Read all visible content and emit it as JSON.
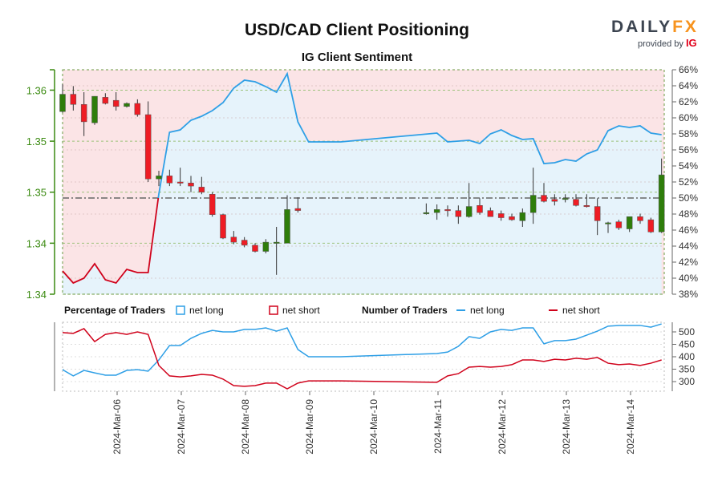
{
  "header": {
    "title": "USD/CAD Client Positioning",
    "subtitle": "IG Client Sentiment",
    "logo": "DAILYFX",
    "logo_provided": "provided by",
    "logo_ig": "IG"
  },
  "legend": {
    "pct_title": "Percentage of Traders",
    "pct_long": "net long",
    "pct_short": "net short",
    "num_title": "Number of Traders",
    "num_long": "net long",
    "num_short": "net short"
  },
  "colors": {
    "long": "#2e9fe6",
    "short": "#d0021b",
    "bull": "#2e7d0a",
    "bear": "#ee1c24",
    "long_fill": "#e6f3fb",
    "short_fill": "#fbe4e6",
    "axis_green": "#3a8a10"
  },
  "chart_data": [
    {
      "type": "candlestick+area",
      "title": "USD/CAD Client Positioning",
      "subtitle": "IG Client Sentiment",
      "x_unit": "4-hour bars from 2024-03-05 04:00",
      "price_ticks": [
        "1.36",
        "1.35",
        "1.35",
        "1.34",
        "1.34"
      ],
      "price_tick_values": [
        1.36,
        1.355,
        1.35,
        1.345,
        1.34
      ],
      "price_range": [
        1.34,
        1.362
      ],
      "pct_ticks": [
        "66%",
        "64%",
        "62%",
        "60%",
        "58%",
        "56%",
        "54%",
        "52%",
        "50%",
        "48%",
        "46%",
        "44%",
        "42%",
        "40%",
        "38%"
      ],
      "pct_range": [
        38,
        66
      ],
      "reference_pct": 50,
      "candles": [
        {
          "i": 0,
          "o": 1.3579,
          "h": 1.3606,
          "l": 1.3578,
          "c": 1.3596
        },
        {
          "i": 1,
          "o": 1.3596,
          "h": 1.3604,
          "l": 1.358,
          "c": 1.3586
        },
        {
          "i": 2,
          "o": 1.3586,
          "h": 1.3598,
          "l": 1.3555,
          "c": 1.3569
        },
        {
          "i": 3,
          "o": 1.3568,
          "h": 1.3594,
          "l": 1.3566,
          "c": 1.3594
        },
        {
          "i": 4,
          "o": 1.3593,
          "h": 1.3597,
          "l": 1.3586,
          "c": 1.3587
        },
        {
          "i": 5,
          "o": 1.359,
          "h": 1.3598,
          "l": 1.358,
          "c": 1.3584
        },
        {
          "i": 6,
          "o": 1.3584,
          "h": 1.3588,
          "l": 1.3583,
          "c": 1.3587
        },
        {
          "i": 7,
          "o": 1.3587,
          "h": 1.3591,
          "l": 1.3574,
          "c": 1.3576
        },
        {
          "i": 8,
          "o": 1.3576,
          "h": 1.3589,
          "l": 1.351,
          "c": 1.3513
        },
        {
          "i": 9,
          "o": 1.3513,
          "h": 1.3521,
          "l": 1.3506,
          "c": 1.3516
        },
        {
          "i": 10,
          "o": 1.3516,
          "h": 1.3522,
          "l": 1.3506,
          "c": 1.3509
        },
        {
          "i": 11,
          "o": 1.351,
          "h": 1.3524,
          "l": 1.3506,
          "c": 1.3509
        },
        {
          "i": 12,
          "o": 1.3509,
          "h": 1.3516,
          "l": 1.35,
          "c": 1.3506
        },
        {
          "i": 13,
          "o": 1.3505,
          "h": 1.3515,
          "l": 1.3498,
          "c": 1.35
        },
        {
          "i": 14,
          "o": 1.3498,
          "h": 1.35,
          "l": 1.3476,
          "c": 1.3478
        },
        {
          "i": 15,
          "o": 1.3478,
          "h": 1.3479,
          "l": 1.3454,
          "c": 1.3455
        },
        {
          "i": 16,
          "o": 1.3456,
          "h": 1.3462,
          "l": 1.3449,
          "c": 1.3451
        },
        {
          "i": 17,
          "o": 1.3453,
          "h": 1.3456,
          "l": 1.3446,
          "c": 1.3448
        },
        {
          "i": 18,
          "o": 1.3448,
          "h": 1.345,
          "l": 1.3441,
          "c": 1.3442
        },
        {
          "i": 19,
          "o": 1.3442,
          "h": 1.3454,
          "l": 1.344,
          "c": 1.3451
        },
        {
          "i": 20,
          "o": 1.345,
          "h": 1.3466,
          "l": 1.3419,
          "c": 1.3451
        },
        {
          "i": 21,
          "o": 1.345,
          "h": 1.3497,
          "l": 1.345,
          "c": 1.3483
        },
        {
          "i": 22,
          "o": 1.3484,
          "h": 1.3495,
          "l": 1.348,
          "c": 1.3482
        },
        {
          "i": 34,
          "o": 1.348,
          "h": 1.3489,
          "l": 1.3478,
          "c": 1.348
        },
        {
          "i": 35,
          "o": 1.348,
          "h": 1.3488,
          "l": 1.3473,
          "c": 1.3483
        },
        {
          "i": 36,
          "o": 1.3483,
          "h": 1.3487,
          "l": 1.3476,
          "c": 1.3482
        },
        {
          "i": 37,
          "o": 1.3482,
          "h": 1.3487,
          "l": 1.3469,
          "c": 1.3476
        },
        {
          "i": 38,
          "o": 1.3476,
          "h": 1.3509,
          "l": 1.3475,
          "c": 1.3486
        },
        {
          "i": 39,
          "o": 1.3487,
          "h": 1.3494,
          "l": 1.3478,
          "c": 1.348
        },
        {
          "i": 40,
          "o": 1.3482,
          "h": 1.3485,
          "l": 1.3476,
          "c": 1.3476
        },
        {
          "i": 41,
          "o": 1.3479,
          "h": 1.3482,
          "l": 1.3472,
          "c": 1.3475
        },
        {
          "i": 42,
          "o": 1.3476,
          "h": 1.3479,
          "l": 1.3472,
          "c": 1.3473
        },
        {
          "i": 43,
          "o": 1.3472,
          "h": 1.3484,
          "l": 1.3466,
          "c": 1.348
        },
        {
          "i": 44,
          "o": 1.348,
          "h": 1.3524,
          "l": 1.3469,
          "c": 1.3497
        },
        {
          "i": 45,
          "o": 1.3497,
          "h": 1.3509,
          "l": 1.349,
          "c": 1.3491
        },
        {
          "i": 46,
          "o": 1.3493,
          "h": 1.3498,
          "l": 1.3487,
          "c": 1.3491
        },
        {
          "i": 47,
          "o": 1.3493,
          "h": 1.3498,
          "l": 1.349,
          "c": 1.3494
        },
        {
          "i": 48,
          "o": 1.3493,
          "h": 1.3498,
          "l": 1.3486,
          "c": 1.3487
        },
        {
          "i": 49,
          "o": 1.3487,
          "h": 1.3498,
          "l": 1.3485,
          "c": 1.3486
        },
        {
          "i": 50,
          "o": 1.3486,
          "h": 1.3494,
          "l": 1.3458,
          "c": 1.3472
        },
        {
          "i": 51,
          "o": 1.347,
          "h": 1.3471,
          "l": 1.346,
          "c": 1.347
        },
        {
          "i": 52,
          "o": 1.3471,
          "h": 1.3473,
          "l": 1.3463,
          "c": 1.3465
        },
        {
          "i": 53,
          "o": 1.3464,
          "h": 1.3476,
          "l": 1.3461,
          "c": 1.3476
        },
        {
          "i": 54,
          "o": 1.3476,
          "h": 1.3479,
          "l": 1.3469,
          "c": 1.3472
        },
        {
          "i": 55,
          "o": 1.3473,
          "h": 1.3475,
          "l": 1.346,
          "c": 1.3461
        },
        {
          "i": 56,
          "o": 1.3461,
          "h": 1.3533,
          "l": 1.346,
          "c": 1.3517
        }
      ],
      "net_long_pct": [
        {
          "i": 0,
          "v": 40.9
        },
        {
          "i": 1,
          "v": 39.4
        },
        {
          "i": 2,
          "v": 40.0
        },
        {
          "i": 3,
          "v": 41.8
        },
        {
          "i": 4,
          "v": 39.8
        },
        {
          "i": 5,
          "v": 39.4
        },
        {
          "i": 6,
          "v": 41.1
        },
        {
          "i": 7,
          "v": 40.7
        },
        {
          "i": 8,
          "v": 40.7
        },
        {
          "i": 9,
          "v": 50.5
        },
        {
          "i": 10,
          "v": 58.2
        },
        {
          "i": 11,
          "v": 58.5
        },
        {
          "i": 12,
          "v": 59.7
        },
        {
          "i": 13,
          "v": 60.2
        },
        {
          "i": 14,
          "v": 60.9
        },
        {
          "i": 15,
          "v": 61.9
        },
        {
          "i": 16,
          "v": 63.7
        },
        {
          "i": 17,
          "v": 64.7
        },
        {
          "i": 18,
          "v": 64.5
        },
        {
          "i": 19,
          "v": 63.9
        },
        {
          "i": 20,
          "v": 63.2
        },
        {
          "i": 21,
          "v": 65.5
        },
        {
          "i": 22,
          "v": 59.5
        },
        {
          "i": 23,
          "v": 57.0
        },
        {
          "i": 26,
          "v": 57.0
        },
        {
          "i": 35,
          "v": 58.1
        },
        {
          "i": 36,
          "v": 57.0
        },
        {
          "i": 38,
          "v": 57.2
        },
        {
          "i": 39,
          "v": 56.8
        },
        {
          "i": 40,
          "v": 58.0
        },
        {
          "i": 41,
          "v": 58.5
        },
        {
          "i": 42,
          "v": 57.8
        },
        {
          "i": 43,
          "v": 57.3
        },
        {
          "i": 44,
          "v": 57.4
        },
        {
          "i": 45,
          "v": 54.3
        },
        {
          "i": 46,
          "v": 54.4
        },
        {
          "i": 47,
          "v": 54.8
        },
        {
          "i": 48,
          "v": 54.6
        },
        {
          "i": 49,
          "v": 55.5
        },
        {
          "i": 50,
          "v": 56.0
        },
        {
          "i": 51,
          "v": 58.4
        },
        {
          "i": 52,
          "v": 59.0
        },
        {
          "i": 53,
          "v": 58.8
        },
        {
          "i": 54,
          "v": 59.0
        },
        {
          "i": 55,
          "v": 58.1
        },
        {
          "i": 56,
          "v": 57.9
        }
      ]
    },
    {
      "type": "line",
      "title": "Number of Traders",
      "y_ticks": [
        "500",
        "450",
        "400",
        "350",
        "300"
      ],
      "y_tick_values": [
        500,
        450,
        400,
        350,
        300
      ],
      "y_range": [
        260,
        540
      ],
      "x_ticks": [
        "2024-Mar-06",
        "2024-Mar-07",
        "2024-Mar-08",
        "2024-Mar-09",
        "2024-Mar-10",
        "2024-Mar-11",
        "2024-Mar-12",
        "2024-Mar-13",
        "2024-Mar-14"
      ],
      "x_tick_index": [
        5,
        11,
        17,
        23,
        29,
        35,
        41,
        47,
        53
      ],
      "series": [
        {
          "name": "net long",
          "points": [
            [
              0,
              348
            ],
            [
              1,
              323
            ],
            [
              2,
              345
            ],
            [
              3,
              335
            ],
            [
              4,
              326
            ],
            [
              5,
              326
            ],
            [
              6,
              345
            ],
            [
              7,
              348
            ],
            [
              8,
              342
            ],
            [
              9,
              387
            ],
            [
              10,
              445
            ],
            [
              11,
              445
            ],
            [
              12,
              474
            ],
            [
              13,
              494
            ],
            [
              14,
              506
            ],
            [
              15,
              500
            ],
            [
              16,
              500
            ],
            [
              17,
              510
            ],
            [
              18,
              510
            ],
            [
              19,
              516
            ],
            [
              20,
              503
            ],
            [
              21,
              516
            ],
            [
              22,
              429
            ],
            [
              23,
              400
            ],
            [
              26,
              400
            ],
            [
              35,
              413
            ],
            [
              36,
              419
            ],
            [
              37,
              442
            ],
            [
              38,
              481
            ],
            [
              39,
              474
            ],
            [
              40,
              500
            ],
            [
              41,
              510
            ],
            [
              42,
              506
            ],
            [
              43,
              516
            ],
            [
              44,
              516
            ],
            [
              45,
              452
            ],
            [
              46,
              465
            ],
            [
              47,
              465
            ],
            [
              48,
              471
            ],
            [
              49,
              487
            ],
            [
              50,
              503
            ],
            [
              51,
              523
            ],
            [
              52,
              526
            ],
            [
              53,
              526
            ],
            [
              54,
              526
            ],
            [
              55,
              519
            ],
            [
              56,
              532
            ]
          ]
        },
        {
          "name": "net short",
          "points": [
            [
              0,
              497
            ],
            [
              1,
              494
            ],
            [
              2,
              513
            ],
            [
              3,
              461
            ],
            [
              4,
              490
            ],
            [
              5,
              497
            ],
            [
              6,
              490
            ],
            [
              7,
              500
            ],
            [
              8,
              490
            ],
            [
              9,
              365
            ],
            [
              10,
              323
            ],
            [
              11,
              319
            ],
            [
              12,
              323
            ],
            [
              13,
              329
            ],
            [
              14,
              326
            ],
            [
              15,
              310
            ],
            [
              16,
              284
            ],
            [
              17,
              281
            ],
            [
              18,
              284
            ],
            [
              19,
              294
            ],
            [
              20,
              294
            ],
            [
              21,
              271
            ],
            [
              22,
              294
            ],
            [
              23,
              303
            ],
            [
              26,
              303
            ],
            [
              35,
              297
            ],
            [
              36,
              323
            ],
            [
              37,
              332
            ],
            [
              38,
              358
            ],
            [
              39,
              361
            ],
            [
              40,
              358
            ],
            [
              41,
              361
            ],
            [
              42,
              368
            ],
            [
              43,
              387
            ],
            [
              44,
              387
            ],
            [
              45,
              381
            ],
            [
              46,
              390
            ],
            [
              47,
              387
            ],
            [
              48,
              394
            ],
            [
              49,
              390
            ],
            [
              50,
              397
            ],
            [
              51,
              374
            ],
            [
              52,
              368
            ],
            [
              53,
              371
            ],
            [
              54,
              365
            ],
            [
              55,
              374
            ],
            [
              56,
              387
            ]
          ]
        }
      ]
    }
  ]
}
